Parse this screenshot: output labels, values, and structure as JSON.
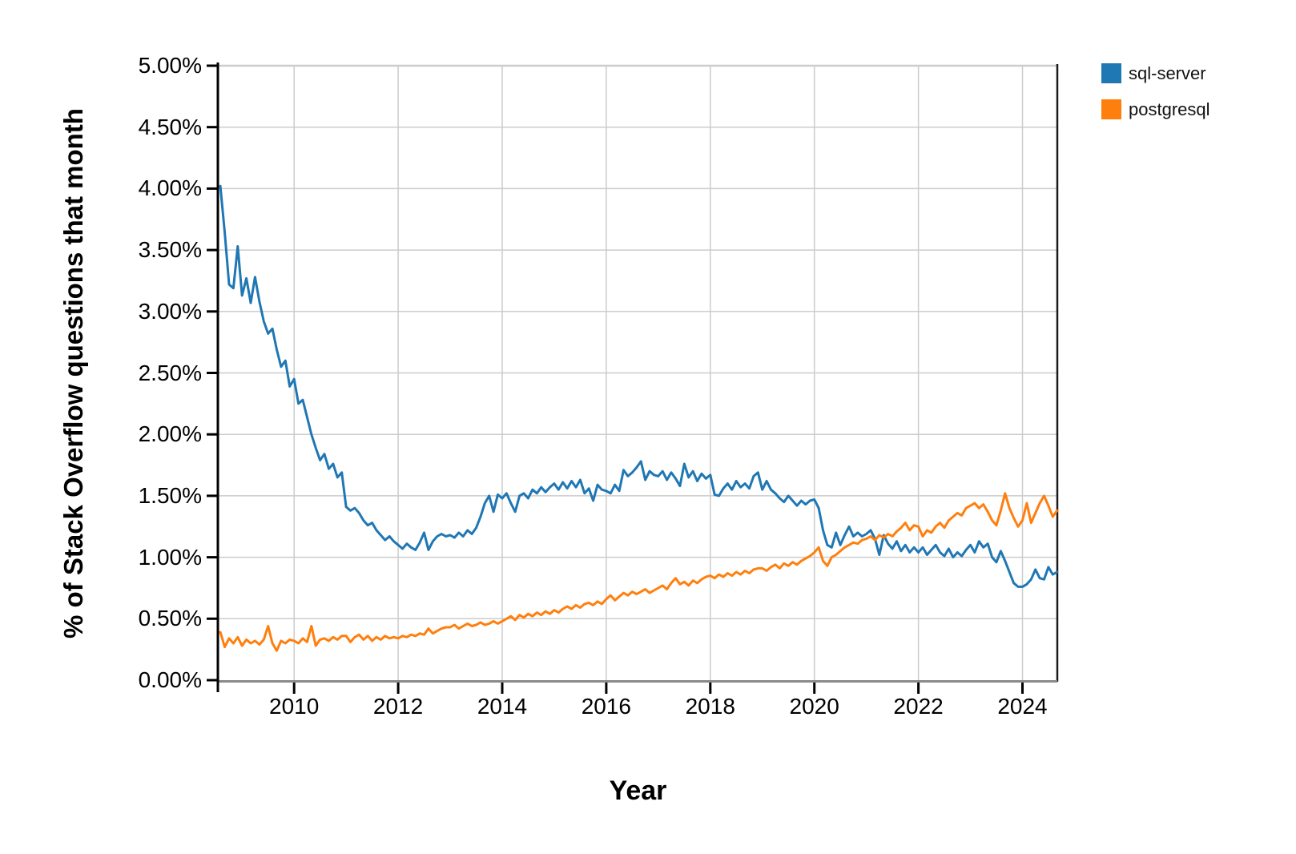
{
  "chart_data": {
    "type": "line",
    "title": "",
    "xlabel": "Year",
    "ylabel": "% of Stack Overflow questions that month",
    "x_domain": [
      2008.55,
      2024.67
    ],
    "y_domain": [
      0,
      5
    ],
    "grid": true,
    "x_ticks": {
      "values": [
        2010,
        2012,
        2014,
        2016,
        2018,
        2020,
        2022,
        2024
      ],
      "labels": [
        "2010",
        "2012",
        "2014",
        "2016",
        "2018",
        "2020",
        "2022",
        "2024"
      ]
    },
    "y_ticks": {
      "values": [
        0,
        0.5,
        1,
        1.5,
        2,
        2.5,
        3,
        3.5,
        4,
        4.5,
        5
      ],
      "labels": [
        "0.00%",
        "0.50%",
        "1.00%",
        "1.50%",
        "2.00%",
        "2.50%",
        "3.00%",
        "3.50%",
        "4.00%",
        "4.50%",
        "5.00%"
      ]
    },
    "legend": {
      "position": "top-right",
      "entries": [
        {
          "label": "sql-server",
          "color": "#1f77b4"
        },
        {
          "label": "postgresql",
          "color": "#ff7f0e"
        }
      ]
    },
    "colors": {
      "grid": "#cccccc",
      "axis": "#000000",
      "baseline": "#8a8a8a",
      "border": "#1a1a1a",
      "text": "#000000",
      "background": "#ffffff"
    },
    "series": [
      {
        "name": "sql-server",
        "color": "#1f77b4",
        "start_year": 2008.583,
        "step_years": 0.083333,
        "values": [
          4.02,
          3.64,
          3.22,
          3.19,
          3.53,
          3.13,
          3.27,
          3.07,
          3.28,
          3.08,
          2.92,
          2.82,
          2.86,
          2.69,
          2.55,
          2.6,
          2.39,
          2.45,
          2.25,
          2.28,
          2.14,
          2.0,
          1.89,
          1.79,
          1.84,
          1.72,
          1.76,
          1.65,
          1.69,
          1.41,
          1.38,
          1.4,
          1.36,
          1.3,
          1.26,
          1.28,
          1.22,
          1.18,
          1.14,
          1.17,
          1.13,
          1.1,
          1.07,
          1.11,
          1.08,
          1.06,
          1.12,
          1.2,
          1.06,
          1.13,
          1.17,
          1.19,
          1.17,
          1.18,
          1.16,
          1.2,
          1.17,
          1.22,
          1.19,
          1.24,
          1.33,
          1.44,
          1.5,
          1.37,
          1.51,
          1.48,
          1.52,
          1.44,
          1.37,
          1.5,
          1.52,
          1.48,
          1.55,
          1.52,
          1.57,
          1.53,
          1.57,
          1.6,
          1.55,
          1.61,
          1.56,
          1.62,
          1.57,
          1.63,
          1.52,
          1.56,
          1.46,
          1.59,
          1.55,
          1.54,
          1.52,
          1.59,
          1.54,
          1.71,
          1.66,
          1.69,
          1.73,
          1.78,
          1.63,
          1.7,
          1.67,
          1.66,
          1.7,
          1.63,
          1.69,
          1.64,
          1.58,
          1.76,
          1.65,
          1.7,
          1.62,
          1.68,
          1.64,
          1.67,
          1.51,
          1.5,
          1.56,
          1.6,
          1.55,
          1.62,
          1.57,
          1.6,
          1.56,
          1.66,
          1.69,
          1.55,
          1.62,
          1.55,
          1.52,
          1.48,
          1.45,
          1.5,
          1.46,
          1.42,
          1.46,
          1.43,
          1.46,
          1.47,
          1.4,
          1.22,
          1.1,
          1.08,
          1.2,
          1.1,
          1.18,
          1.25,
          1.17,
          1.2,
          1.17,
          1.19,
          1.22,
          1.15,
          1.02,
          1.18,
          1.11,
          1.07,
          1.13,
          1.05,
          1.1,
          1.04,
          1.08,
          1.04,
          1.08,
          1.02,
          1.06,
          1.1,
          1.04,
          1.01,
          1.07,
          1.0,
          1.04,
          1.01,
          1.06,
          1.1,
          1.04,
          1.13,
          1.08,
          1.11,
          1.0,
          0.96,
          1.05,
          0.97,
          0.88,
          0.79,
          0.76,
          0.76,
          0.78,
          0.82,
          0.9,
          0.83,
          0.82,
          0.92,
          0.86,
          0.88
        ]
      },
      {
        "name": "postgresql",
        "color": "#ff7f0e",
        "start_year": 2008.583,
        "step_years": 0.083333,
        "values": [
          0.39,
          0.27,
          0.34,
          0.3,
          0.35,
          0.28,
          0.33,
          0.3,
          0.32,
          0.29,
          0.33,
          0.44,
          0.3,
          0.24,
          0.32,
          0.3,
          0.33,
          0.32,
          0.3,
          0.34,
          0.31,
          0.44,
          0.28,
          0.33,
          0.34,
          0.32,
          0.35,
          0.33,
          0.36,
          0.36,
          0.31,
          0.35,
          0.37,
          0.33,
          0.36,
          0.32,
          0.35,
          0.33,
          0.36,
          0.34,
          0.35,
          0.34,
          0.36,
          0.35,
          0.37,
          0.36,
          0.38,
          0.37,
          0.42,
          0.38,
          0.4,
          0.42,
          0.43,
          0.43,
          0.45,
          0.42,
          0.44,
          0.46,
          0.44,
          0.45,
          0.47,
          0.45,
          0.46,
          0.48,
          0.46,
          0.48,
          0.5,
          0.52,
          0.49,
          0.53,
          0.51,
          0.54,
          0.52,
          0.55,
          0.53,
          0.56,
          0.54,
          0.57,
          0.55,
          0.58,
          0.6,
          0.58,
          0.61,
          0.59,
          0.62,
          0.63,
          0.61,
          0.64,
          0.62,
          0.66,
          0.69,
          0.65,
          0.68,
          0.71,
          0.69,
          0.72,
          0.7,
          0.72,
          0.74,
          0.71,
          0.73,
          0.75,
          0.77,
          0.74,
          0.79,
          0.83,
          0.78,
          0.8,
          0.77,
          0.81,
          0.79,
          0.82,
          0.84,
          0.85,
          0.83,
          0.86,
          0.84,
          0.87,
          0.85,
          0.88,
          0.86,
          0.89,
          0.87,
          0.9,
          0.91,
          0.91,
          0.89,
          0.92,
          0.94,
          0.91,
          0.95,
          0.93,
          0.96,
          0.94,
          0.97,
          0.99,
          1.01,
          1.04,
          1.08,
          0.97,
          0.93,
          1.0,
          1.02,
          1.05,
          1.08,
          1.1,
          1.12,
          1.11,
          1.14,
          1.15,
          1.17,
          1.14,
          1.18,
          1.16,
          1.19,
          1.17,
          1.21,
          1.24,
          1.28,
          1.22,
          1.26,
          1.25,
          1.17,
          1.22,
          1.2,
          1.25,
          1.28,
          1.24,
          1.3,
          1.33,
          1.36,
          1.34,
          1.4,
          1.42,
          1.44,
          1.4,
          1.43,
          1.37,
          1.3,
          1.26,
          1.38,
          1.52,
          1.4,
          1.32,
          1.25,
          1.3,
          1.44,
          1.28,
          1.36,
          1.44,
          1.5,
          1.42,
          1.33,
          1.38
        ]
      }
    ]
  }
}
